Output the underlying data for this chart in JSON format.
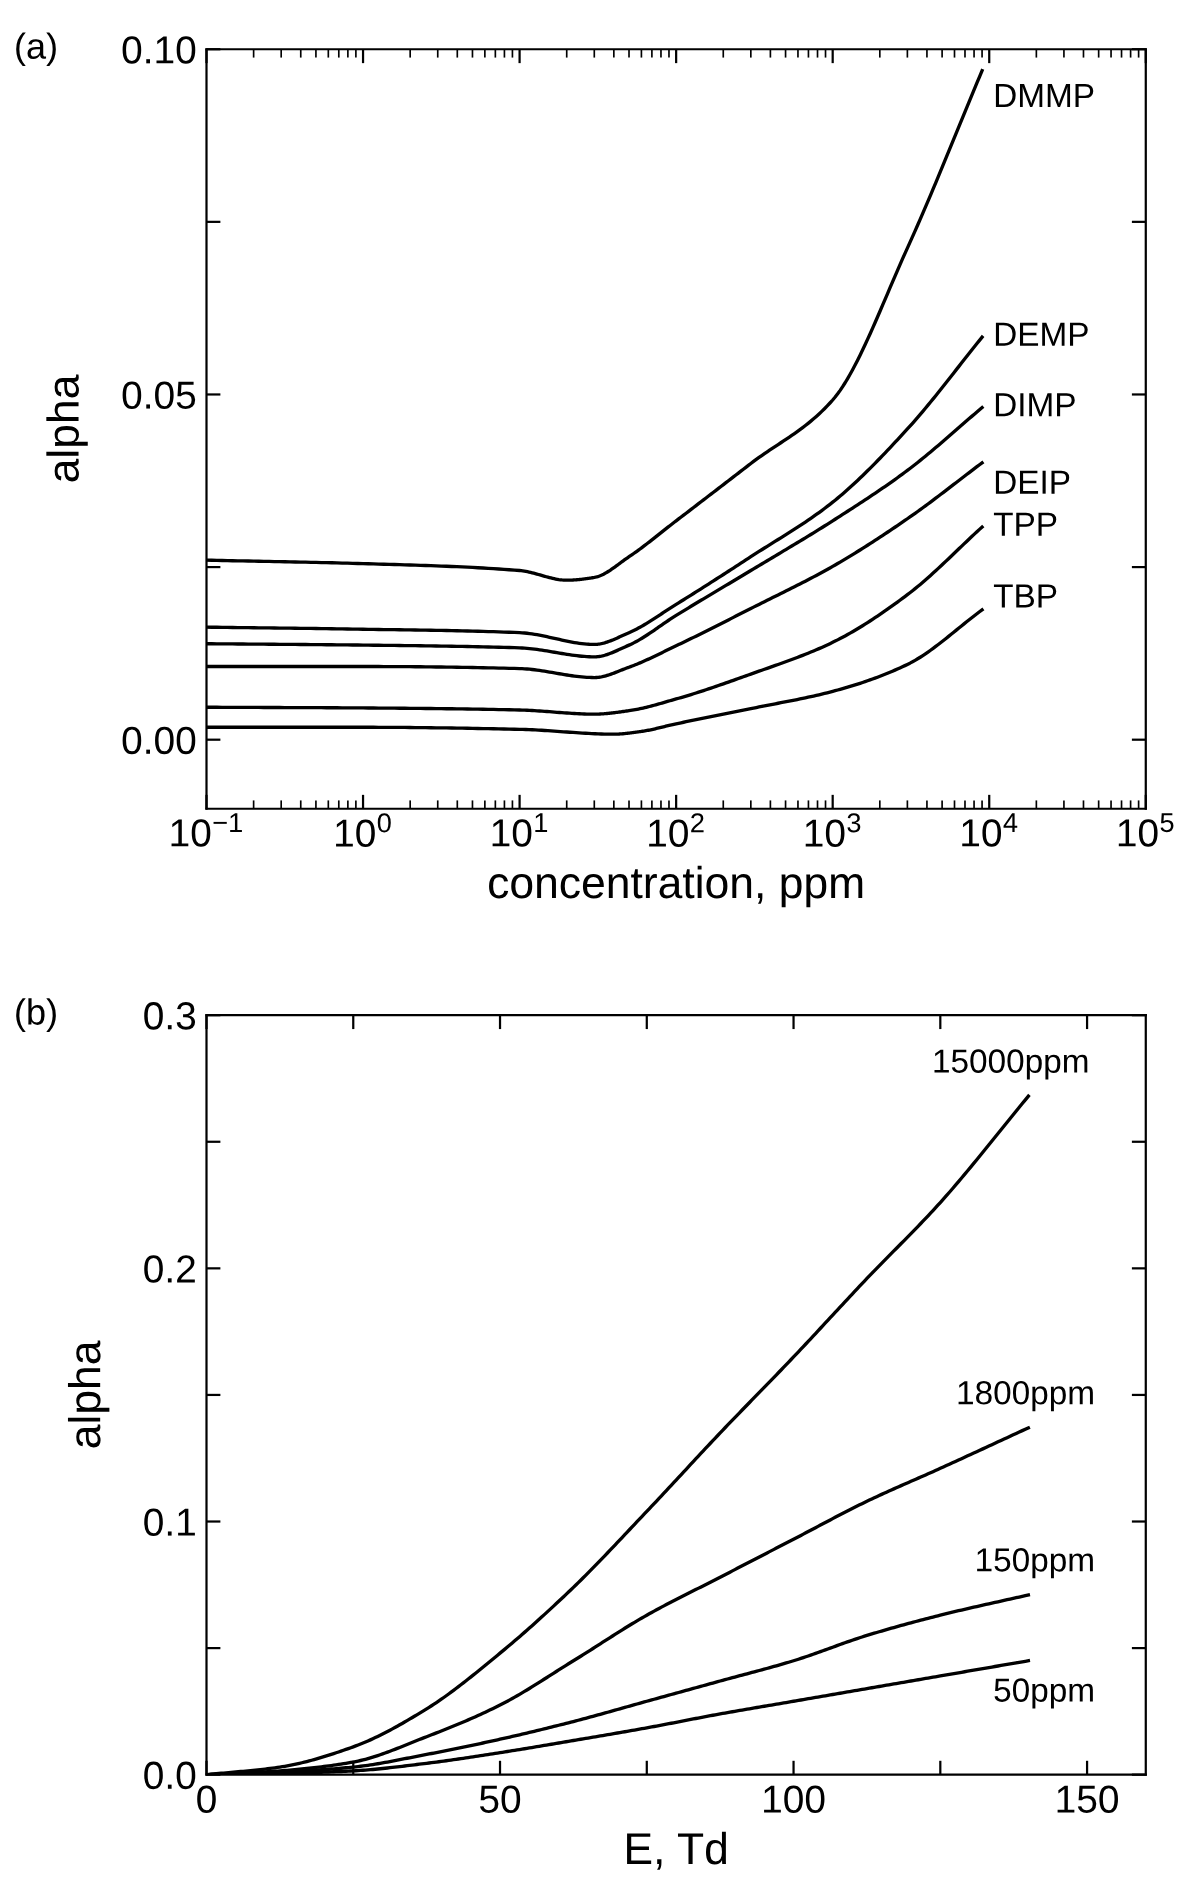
{
  "chart_data": [
    {
      "type": "line",
      "title": "(a)",
      "xlabel": "concentration, ppm",
      "ylabel": "alpha",
      "log": "x",
      "xlim": [
        0.1,
        100000
      ],
      "ylim": [
        -0.01,
        0.1
      ],
      "xticks": [
        {
          "value": 0.1,
          "label": "10$^{−1}$"
        },
        {
          "value": 1,
          "label": "10$^{0}$"
        },
        {
          "value": 10,
          "label": "10$^{1}$"
        },
        {
          "value": 100,
          "label": "10$^{2}$"
        },
        {
          "value": 1000,
          "label": "10$^{3}$"
        },
        {
          "value": 10000,
          "label": "10$^{4}$"
        },
        {
          "value": 100000,
          "label": "10$^{5}$"
        }
      ],
      "yticks": [
        {
          "value": 0.0,
          "label": "0.00"
        },
        {
          "value": 0.025,
          "label": null
        },
        {
          "value": 0.05,
          "label": "0.05"
        },
        {
          "value": 0.075,
          "label": null
        },
        {
          "value": 0.1,
          "label": "0.10"
        }
      ],
      "grid": false,
      "legend": "right",
      "marker": "none",
      "line_style": "solid",
      "series": [
        {
          "name": "DMMP",
          "color": "#000000",
          "x": [
            0.1,
            1,
            10,
            20,
            30,
            50,
            100,
            300,
            1000,
            3000,
            9000
          ],
          "values": [
            0.026,
            0.0255,
            0.0245,
            0.0231,
            0.0235,
            0.0265,
            0.0317,
            0.04,
            0.0492,
            0.0712,
            0.0969
          ]
        },
        {
          "name": "DEMP",
          "color": "#000000",
          "x": [
            0.1,
            1,
            10,
            30,
            50,
            100,
            300,
            1000,
            3000,
            9000
          ],
          "values": [
            0.0163,
            0.016,
            0.0155,
            0.0138,
            0.0155,
            0.0196,
            0.0265,
            0.0344,
            0.045,
            0.0583
          ]
        },
        {
          "name": "DIMP",
          "color": "#000000",
          "x": [
            0.1,
            1,
            10,
            30,
            50,
            100,
            300,
            1000,
            3000,
            9000
          ],
          "values": [
            0.0139,
            0.0137,
            0.0133,
            0.012,
            0.0137,
            0.018,
            0.0245,
            0.0317,
            0.039,
            0.0481
          ]
        },
        {
          "name": "DEIP",
          "color": "#000000",
          "x": [
            0.1,
            1,
            10,
            30,
            50,
            100,
            300,
            1000,
            3000,
            9000
          ],
          "values": [
            0.0106,
            0.0106,
            0.0103,
            0.009,
            0.0105,
            0.0136,
            0.019,
            0.0251,
            0.032,
            0.0401
          ]
        },
        {
          "name": "TPP",
          "color": "#000000",
          "x": [
            0.1,
            1,
            10,
            30,
            50,
            100,
            300,
            1000,
            3000,
            9000
          ],
          "values": [
            0.0047,
            0.0046,
            0.0043,
            0.0037,
            0.0042,
            0.0059,
            0.0095,
            0.0141,
            0.021,
            0.0308
          ]
        },
        {
          "name": "TBP",
          "color": "#000000",
          "x": [
            0.1,
            1,
            10,
            40,
            60,
            100,
            300,
            1000,
            3000,
            9000
          ],
          "values": [
            0.0018,
            0.0018,
            0.0015,
            0.0008,
            0.0012,
            0.0023,
            0.0045,
            0.007,
            0.0109,
            0.0188
          ]
        }
      ]
    },
    {
      "type": "line",
      "title": "(b)",
      "xlabel": "E, Td",
      "ylabel": "alpha",
      "xlim": [
        0,
        160
      ],
      "ylim": [
        0,
        0.3
      ],
      "xticks": [
        0,
        {
          "value": 25,
          "label": null
        },
        50,
        {
          "value": 75,
          "label": null
        },
        100,
        {
          "value": 125,
          "label": null
        },
        150
      ],
      "yticks": [
        {
          "value": 0,
          "label": "0.0"
        },
        {
          "value": 0.05,
          "label": null
        },
        0.1,
        {
          "value": 0.15,
          "label": null
        },
        0.2,
        {
          "value": 0.25,
          "label": null
        },
        0.3
      ],
      "grid": false,
      "legend": "right",
      "marker": "none",
      "line_style": "solid",
      "series": [
        {
          "name": "15000ppm",
          "color": "#000000",
          "x": [
            0,
            12.5,
            25,
            37.5,
            50,
            62.5,
            75,
            87.5,
            100,
            112.5,
            125,
            140
          ],
          "values": [
            0,
            0.003,
            0.011,
            0.026,
            0.048,
            0.074,
            0.104,
            0.135,
            0.165,
            0.196,
            0.226,
            0.268
          ]
        },
        {
          "name": "1800ppm",
          "color": "#000000",
          "x": [
            0,
            12.5,
            25,
            37.5,
            50,
            62.5,
            75,
            87.5,
            100,
            112.5,
            125,
            140
          ],
          "values": [
            0,
            0.0015,
            0.005,
            0.015,
            0.0275,
            0.045,
            0.063,
            0.078,
            0.093,
            0.108,
            0.121,
            0.137
          ]
        },
        {
          "name": "150ppm",
          "color": "#000000",
          "x": [
            0,
            12.5,
            25,
            37.5,
            50,
            62.5,
            75,
            87.5,
            100,
            112.5,
            125,
            140
          ],
          "values": [
            0,
            0.001,
            0.003,
            0.008,
            0.014,
            0.021,
            0.029,
            0.037,
            0.045,
            0.055,
            0.063,
            0.071
          ]
        },
        {
          "name": "50ppm",
          "color": "#000000",
          "x": [
            0,
            12.5,
            25,
            37.5,
            50,
            62.5,
            75,
            87.5,
            100,
            112.5,
            125,
            140
          ],
          "values": [
            0,
            0.0005,
            0.0015,
            0.0045,
            0.0087,
            0.0135,
            0.0185,
            0.024,
            0.029,
            0.034,
            0.039,
            0.045
          ]
        }
      ]
    }
  ]
}
